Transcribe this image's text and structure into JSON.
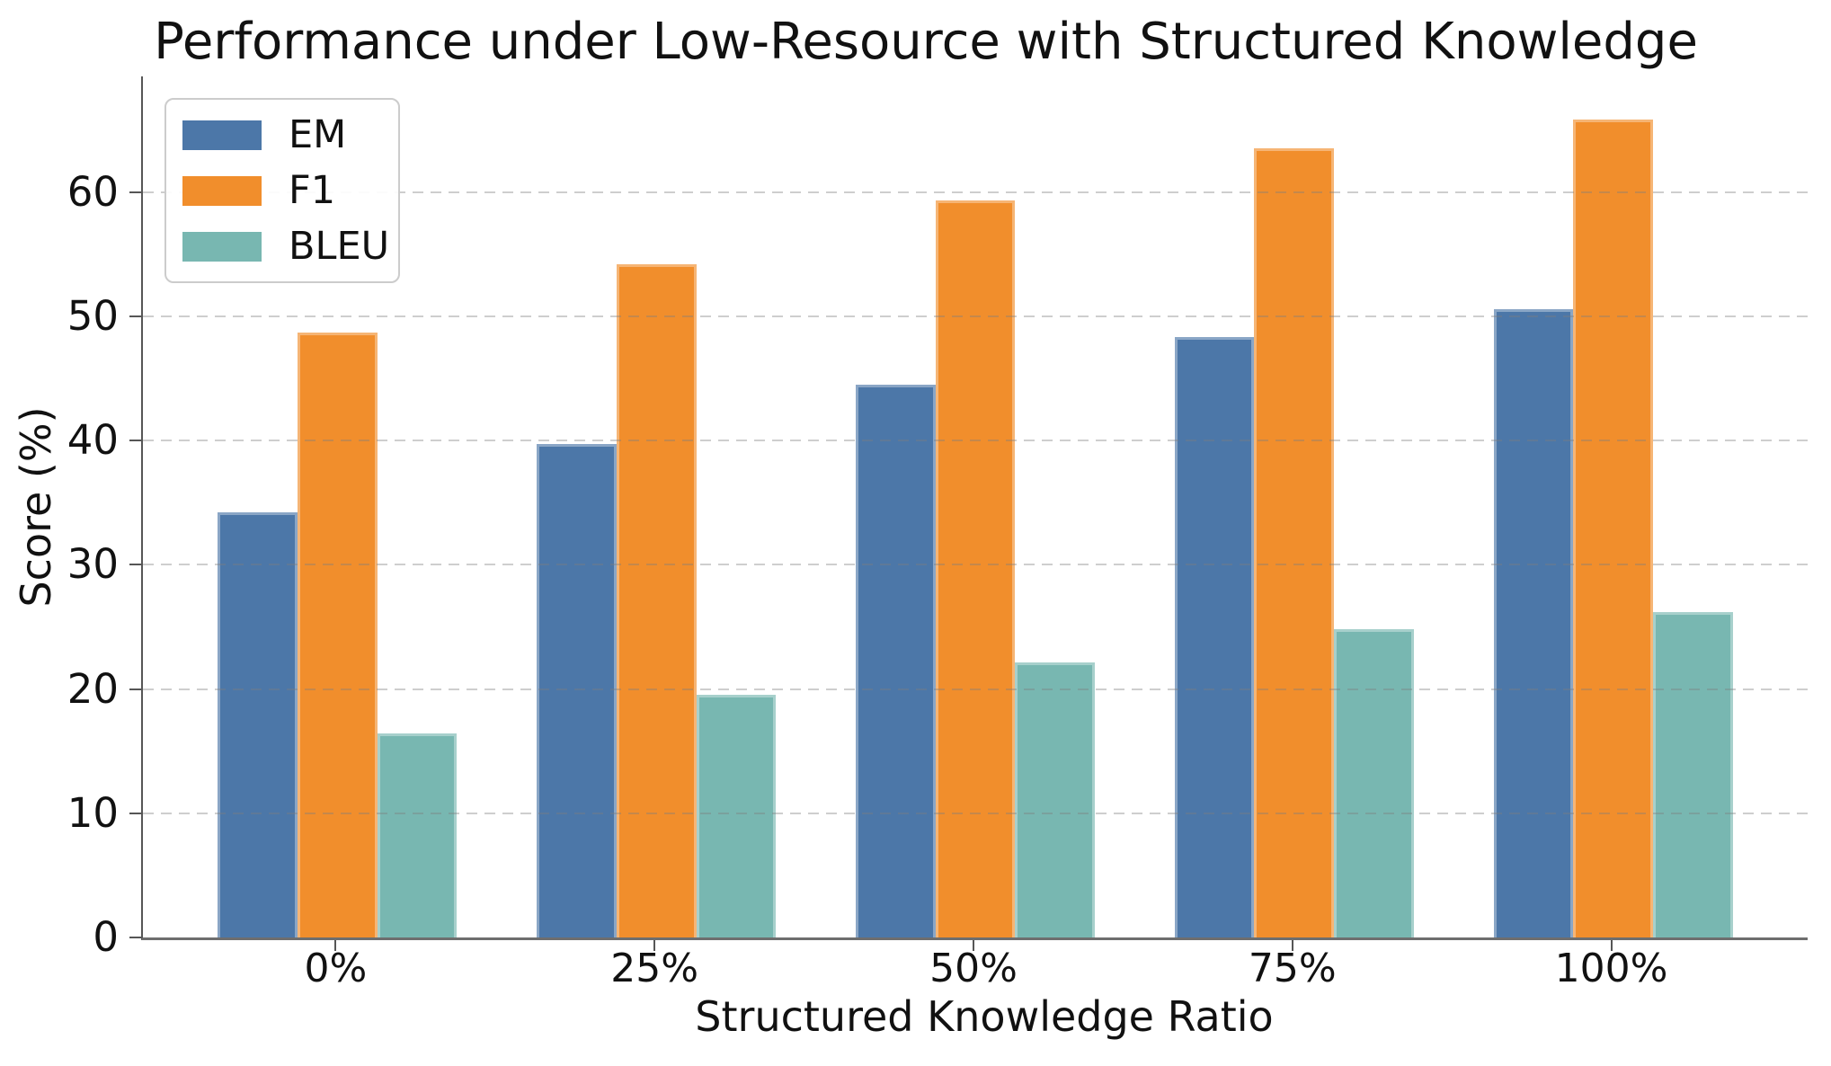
{
  "chart_data": {
    "type": "bar",
    "title": "Performance under Low-Resource with Structured Knowledge",
    "xlabel": "Structured Knowledge Ratio",
    "ylabel": "Score (%)",
    "categories": [
      "0%",
      "25%",
      "50%",
      "75%",
      "100%"
    ],
    "series": [
      {
        "name": "EM",
        "color": "#4c77a8",
        "values": [
          34.2,
          39.7,
          44.5,
          48.3,
          50.6
        ]
      },
      {
        "name": "F1",
        "color": "#f18e2c",
        "values": [
          48.7,
          54.2,
          59.3,
          63.5,
          65.8
        ]
      },
      {
        "name": "BLEU",
        "color": "#78b7b1",
        "values": [
          16.4,
          19.5,
          22.1,
          24.8,
          26.2
        ]
      }
    ],
    "yticks": [
      0,
      10,
      20,
      30,
      40,
      50,
      60
    ],
    "ylim": [
      0,
      69.3
    ],
    "xlim": [
      -0.61,
      4.61
    ],
    "bar_width_units": 0.25,
    "grid": "dashed-horizontal-over-bars",
    "legend_position": "upper-left",
    "legend_entries": [
      "EM",
      "F1",
      "BLEU"
    ],
    "grid_color": "#cfcfcf",
    "axis_color": "#565656",
    "text_color": "#111111",
    "background_color": "#ffffff"
  }
}
